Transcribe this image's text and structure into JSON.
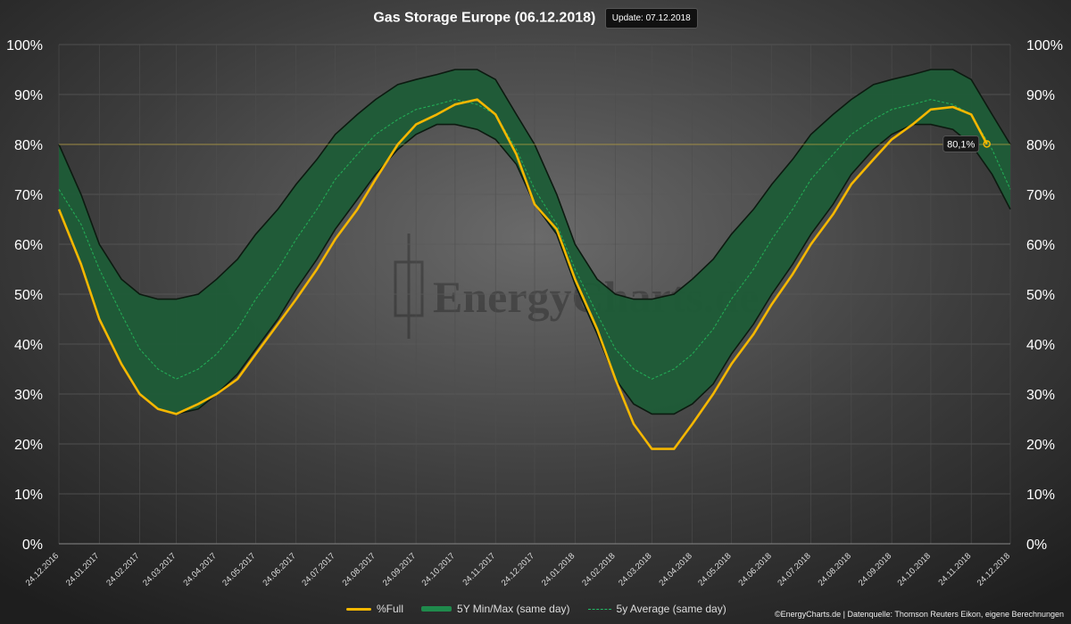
{
  "header": {
    "title": "Gas Storage Europe (06.12.2018)",
    "update": "Update: 07.12.2018"
  },
  "watermark": "EnergyCharts.de",
  "footer": {
    "credit": "©EnergyCharts.de | Datenquelle: Thomson Reuters Eikon, eigene Berechnungen"
  },
  "legend": [
    {
      "label": "%Full",
      "icon": "solid-line"
    },
    {
      "label": "5Y Min/Max (same day)",
      "icon": "band"
    },
    {
      "label": "5y Average (same day)",
      "icon": "dashed-line"
    }
  ],
  "colors": {
    "background": "#2a2a2a",
    "full": "#f5b700",
    "band": "#1d5c37",
    "band_edge": "#0c1a10",
    "average": "#22aa55",
    "reference": "#b8a040"
  },
  "chart_data": {
    "type": "area",
    "x_tick_labels": [
      "24.12.2016",
      "24.01.2017",
      "24.02.2017",
      "24.03.2017",
      "24.04.2017",
      "24.05.2017",
      "24.06.2017",
      "24.07.2017",
      "24.08.2017",
      "24.09.2017",
      "24.10.2017",
      "24.11.2017",
      "24.12.2017",
      "24.01.2018",
      "24.02.2018",
      "24.03.2018",
      "24.04.2018",
      "24.05.2018",
      "24.06.2018",
      "24.07.2018",
      "24.08.2018",
      "24.09.2018",
      "24.10.2018",
      "24.11.2018",
      "24.12.2018"
    ],
    "y_tick_labels": [
      "0%",
      "10%",
      "20%",
      "30%",
      "40%",
      "50%",
      "60%",
      "70%",
      "80%",
      "90%",
      "100%"
    ],
    "ylim": [
      0,
      100
    ],
    "grid": true,
    "legend_position": "bottom",
    "reference_line": 80.1,
    "current_label": "80,1%",
    "series": [
      {
        "name": "%Full",
        "x": [
          "24.12.2016",
          "10.01.2017",
          "24.01.2017",
          "10.02.2017",
          "24.02.2017",
          "10.03.2017",
          "24.03.2017",
          "10.04.2017",
          "24.04.2017",
          "10.05.2017",
          "24.05.2017",
          "10.06.2017",
          "24.06.2017",
          "10.07.2017",
          "24.07.2017",
          "10.08.2017",
          "24.08.2017",
          "10.09.2017",
          "24.09.2017",
          "10.10.2017",
          "24.10.2017",
          "10.11.2017",
          "24.11.2017",
          "10.12.2017",
          "24.12.2017",
          "10.01.2018",
          "24.01.2018",
          "10.02.2018",
          "24.02.2018",
          "10.03.2018",
          "24.03.2018",
          "10.04.2018",
          "24.04.2018",
          "10.05.2018",
          "24.05.2018",
          "10.06.2018",
          "24.06.2018",
          "10.07.2018",
          "24.07.2018",
          "10.08.2018",
          "24.08.2018",
          "10.09.2018",
          "24.09.2018",
          "10.10.2018",
          "24.10.2018",
          "10.11.2018",
          "24.11.2018",
          "06.12.2018"
        ],
        "values": [
          67,
          56,
          45,
          36,
          30,
          27,
          26,
          28,
          30,
          33,
          38,
          44,
          49,
          55,
          61,
          67,
          73,
          80,
          84,
          86,
          88,
          89,
          86,
          78,
          68,
          63,
          53,
          43,
          33,
          24,
          19,
          19,
          24,
          30,
          36,
          42,
          48,
          54,
          60,
          66,
          72,
          77,
          81,
          84,
          87,
          87.5,
          86,
          80.1
        ]
      },
      {
        "name": "5Y Min",
        "x": [
          "24.12.2016",
          "10.01.2017",
          "24.01.2017",
          "10.02.2017",
          "24.02.2017",
          "10.03.2017",
          "24.03.2017",
          "10.04.2017",
          "24.04.2017",
          "10.05.2017",
          "24.05.2017",
          "10.06.2017",
          "24.06.2017",
          "10.07.2017",
          "24.07.2017",
          "10.08.2017",
          "24.08.2017",
          "10.09.2017",
          "24.09.2017",
          "10.10.2017",
          "24.10.2017",
          "10.11.2017",
          "24.11.2017",
          "10.12.2017",
          "24.12.2017",
          "10.01.2018",
          "24.01.2018",
          "10.02.2018",
          "24.02.2018",
          "10.03.2018",
          "24.03.2018",
          "10.04.2018",
          "24.04.2018",
          "10.05.2018",
          "24.05.2018",
          "10.06.2018",
          "24.06.2018",
          "10.07.2018",
          "24.07.2018",
          "10.08.2018",
          "24.08.2018",
          "10.09.2018",
          "24.09.2018",
          "10.10.2018",
          "24.10.2018",
          "10.11.2018",
          "24.11.2018",
          "10.12.2018",
          "24.12.2018"
        ],
        "values": [
          67,
          56,
          45,
          36,
          30,
          27,
          26,
          27,
          30,
          34,
          39,
          45,
          51,
          57,
          63,
          69,
          74,
          79,
          82,
          84,
          84,
          83,
          81,
          76,
          68,
          62,
          52,
          42,
          33,
          28,
          26,
          26,
          28,
          32,
          38,
          44,
          50,
          56,
          62,
          68,
          74,
          79,
          82,
          84,
          84,
          83,
          80,
          74,
          67
        ]
      },
      {
        "name": "5Y Max",
        "x": [
          "24.12.2016",
          "10.01.2017",
          "24.01.2017",
          "10.02.2017",
          "24.02.2017",
          "10.03.2017",
          "24.03.2017",
          "10.04.2017",
          "24.04.2017",
          "10.05.2017",
          "24.05.2017",
          "10.06.2017",
          "24.06.2017",
          "10.07.2017",
          "24.07.2017",
          "10.08.2017",
          "24.08.2017",
          "10.09.2017",
          "24.09.2017",
          "10.10.2017",
          "24.10.2017",
          "10.11.2017",
          "24.11.2017",
          "10.12.2017",
          "24.12.2017",
          "10.01.2018",
          "24.01.2018",
          "10.02.2018",
          "24.02.2018",
          "10.03.2018",
          "24.03.2018",
          "10.04.2018",
          "24.04.2018",
          "10.05.2018",
          "24.05.2018",
          "10.06.2018",
          "24.06.2018",
          "10.07.2018",
          "24.07.2018",
          "10.08.2018",
          "24.08.2018",
          "10.09.2018",
          "24.09.2018",
          "10.10.2018",
          "24.10.2018",
          "10.11.2018",
          "24.11.2018",
          "10.12.2018",
          "24.12.2018"
        ],
        "values": [
          80,
          70,
          60,
          53,
          50,
          49,
          49,
          50,
          53,
          57,
          62,
          67,
          72,
          77,
          82,
          86,
          89,
          92,
          93,
          94,
          95,
          95,
          93,
          86,
          80,
          70,
          60,
          53,
          50,
          49,
          49,
          50,
          53,
          57,
          62,
          67,
          72,
          77,
          82,
          86,
          89,
          92,
          93,
          94,
          95,
          95,
          93,
          86,
          80
        ]
      },
      {
        "name": "5y Average (same day)",
        "x": [
          "24.12.2016",
          "10.01.2017",
          "24.01.2017",
          "10.02.2017",
          "24.02.2017",
          "10.03.2017",
          "24.03.2017",
          "10.04.2017",
          "24.04.2017",
          "10.05.2017",
          "24.05.2017",
          "10.06.2017",
          "24.06.2017",
          "10.07.2017",
          "24.07.2017",
          "10.08.2017",
          "24.08.2017",
          "10.09.2017",
          "24.09.2017",
          "10.10.2017",
          "24.10.2017",
          "10.11.2017",
          "24.11.2017",
          "10.12.2017",
          "24.12.2017",
          "10.01.2018",
          "24.01.2018",
          "10.02.2018",
          "24.02.2018",
          "10.03.2018",
          "24.03.2018",
          "10.04.2018",
          "24.04.2018",
          "10.05.2018",
          "24.05.2018",
          "10.06.2018",
          "24.06.2018",
          "10.07.2018",
          "24.07.2018",
          "10.08.2018",
          "24.08.2018",
          "10.09.2018",
          "24.09.2018",
          "10.10.2018",
          "24.10.2018",
          "10.11.2018",
          "24.11.2018",
          "10.12.2018",
          "24.12.2018"
        ],
        "values": [
          71,
          64,
          55,
          46,
          39,
          35,
          33,
          35,
          38,
          43,
          49,
          55,
          61,
          67,
          73,
          78,
          82,
          85,
          87,
          88,
          89,
          88,
          86,
          79,
          71,
          64,
          55,
          46,
          39,
          35,
          33,
          35,
          38,
          43,
          49,
          55,
          61,
          67,
          73,
          78,
          82,
          85,
          87,
          88,
          89,
          88,
          86,
          79,
          71
        ]
      }
    ]
  }
}
